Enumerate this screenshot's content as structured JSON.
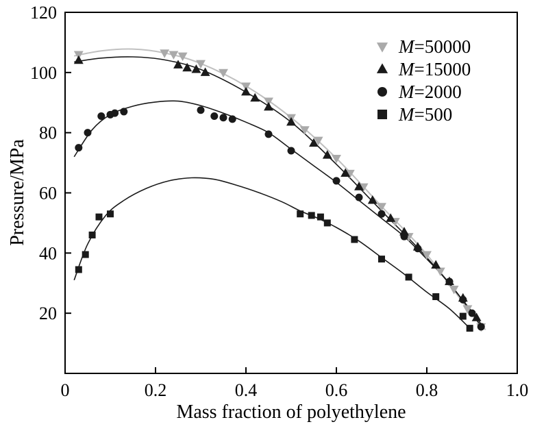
{
  "chart_data": {
    "type": "line",
    "title": "",
    "xlabel": "Mass fraction of polyethylene",
    "ylabel": "Pressure/MPa",
    "xlim": [
      0,
      1.0
    ],
    "ylim": [
      0,
      120
    ],
    "grid": false,
    "legend_position": "top-right",
    "xtick_values": [
      0,
      0.2,
      0.4,
      0.6,
      0.8,
      1.0
    ],
    "xtick_labels": [
      "0",
      "0.2",
      "0.4",
      "0.6",
      "0.8",
      "1.0"
    ],
    "ytick_values": [
      20,
      40,
      60,
      80,
      100,
      120
    ],
    "ytick_labels": [
      "20",
      "40",
      "60",
      "80",
      "100",
      "120"
    ],
    "colors": {
      "axis": "#000000",
      "black_series": "#1a1a1a",
      "gray_series": "#aaaaaa",
      "gray_line": "#c0c0c0"
    },
    "series": [
      {
        "id": "m50000",
        "name": "M=50000",
        "marker": "triangle-down",
        "marker_color": "#aaaaaa",
        "line_color": "#c0c0c0",
        "line_width": 2,
        "marker_size": 12,
        "points_x": [
          0.03,
          0.22,
          0.24,
          0.26,
          0.3,
          0.35,
          0.4,
          0.45,
          0.5,
          0.53,
          0.56,
          0.6,
          0.63,
          0.66,
          0.7,
          0.73,
          0.76,
          0.8,
          0.83,
          0.86,
          0.89,
          0.92
        ],
        "points_y": [
          106,
          106.5,
          106,
          105.5,
          103,
          100,
          95.5,
          90.5,
          85,
          81,
          77.5,
          71.5,
          66.5,
          62,
          55.5,
          50.5,
          45.5,
          39.5,
          34,
          28,
          21.5,
          15.5
        ],
        "curve_x": [
          0.02,
          0.08,
          0.15,
          0.22,
          0.3,
          0.4,
          0.5,
          0.6,
          0.7,
          0.8,
          0.9,
          0.93
        ],
        "curve_y": [
          105.5,
          107.2,
          107.8,
          106.5,
          103,
          95.5,
          85,
          71.5,
          55.5,
          39.5,
          19.5,
          14.5
        ]
      },
      {
        "id": "m15000",
        "name": "M=15000",
        "marker": "triangle-up",
        "marker_color": "#1a1a1a",
        "line_color": "#1a1a1a",
        "line_width": 1.6,
        "marker_size": 12,
        "points_x": [
          0.03,
          0.25,
          0.27,
          0.29,
          0.31,
          0.4,
          0.42,
          0.45,
          0.5,
          0.55,
          0.58,
          0.62,
          0.65,
          0.68,
          0.72,
          0.75,
          0.78,
          0.82,
          0.85,
          0.88,
          0.91
        ],
        "points_y": [
          104,
          102.5,
          101.5,
          101,
          100,
          93.5,
          91.5,
          88.5,
          83.5,
          76.5,
          72.5,
          66.5,
          62,
          57.5,
          51.5,
          47,
          42,
          36,
          30.5,
          25,
          18.5
        ],
        "curve_x": [
          0.02,
          0.08,
          0.15,
          0.22,
          0.3,
          0.4,
          0.5,
          0.6,
          0.7,
          0.8,
          0.9,
          0.925
        ],
        "curve_y": [
          103.5,
          104.8,
          105.2,
          104.2,
          101,
          93.5,
          83.5,
          69.5,
          54,
          38.5,
          20.5,
          15
        ]
      },
      {
        "id": "m2000",
        "name": "M=2000",
        "marker": "circle",
        "marker_color": "#1a1a1a",
        "line_color": "#1a1a1a",
        "line_width": 1.6,
        "marker_size": 11,
        "points_x": [
          0.03,
          0.05,
          0.08,
          0.1,
          0.11,
          0.13,
          0.3,
          0.33,
          0.35,
          0.37,
          0.45,
          0.5,
          0.6,
          0.65,
          0.7,
          0.75,
          0.78,
          0.85,
          0.88,
          0.9,
          0.92
        ],
        "points_y": [
          75,
          80,
          85.5,
          86,
          86.5,
          87,
          87.5,
          85.5,
          85,
          84.5,
          79.5,
          74,
          64,
          58.5,
          53,
          45.5,
          41.5,
          30.5,
          24.5,
          20,
          15.5
        ],
        "curve_x": [
          0.02,
          0.06,
          0.1,
          0.15,
          0.2,
          0.25,
          0.3,
          0.35,
          0.4,
          0.45,
          0.5,
          0.55,
          0.6,
          0.65,
          0.7,
          0.75,
          0.8,
          0.85,
          0.9,
          0.92
        ],
        "curve_y": [
          72,
          81,
          86,
          88.8,
          90.2,
          90.5,
          89,
          86.5,
          83.5,
          80,
          74.5,
          69,
          63.5,
          57.5,
          51.5,
          45.5,
          38,
          30,
          20,
          15.5
        ]
      },
      {
        "id": "m500",
        "name": "M=500",
        "marker": "square",
        "marker_color": "#1a1a1a",
        "line_color": "#1a1a1a",
        "line_width": 1.6,
        "marker_size": 10,
        "points_x": [
          0.03,
          0.045,
          0.06,
          0.075,
          0.1,
          0.52,
          0.545,
          0.565,
          0.58,
          0.64,
          0.7,
          0.76,
          0.82,
          0.88,
          0.895
        ],
        "points_y": [
          34.5,
          39.5,
          46,
          52,
          53,
          53,
          52.5,
          52,
          50,
          44.5,
          38,
          32,
          25.5,
          19,
          15
        ],
        "curve_x": [
          0.02,
          0.05,
          0.09,
          0.13,
          0.18,
          0.23,
          0.28,
          0.33,
          0.38,
          0.43,
          0.48,
          0.52,
          0.56,
          0.6,
          0.65,
          0.7,
          0.75,
          0.8,
          0.85,
          0.895
        ],
        "curve_y": [
          31,
          43,
          52.5,
          57.5,
          61.5,
          64,
          65,
          64.5,
          62.5,
          60,
          57,
          54,
          51.5,
          48.5,
          44,
          38.5,
          33,
          27,
          21.5,
          15
        ]
      }
    ]
  }
}
